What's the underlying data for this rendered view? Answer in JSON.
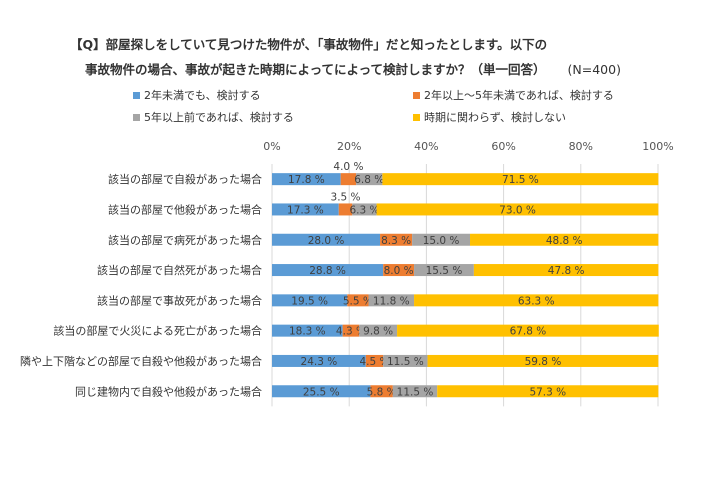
{
  "title": {
    "line1": "【Q】部屋探しをしていて見つけた物件が、「事故物件」だと知ったとします。以下の",
    "line2": "事故物件の場合、事故が起きた時期によってによって検討しますか？（単一回答）",
    "n": "(N=400)"
  },
  "chart_data": {
    "type": "bar",
    "orientation": "horizontal",
    "stacked": true,
    "categories": [
      "該当の部屋で自殺があった場合",
      "該当の部屋で他殺があった場合",
      "該当の部屋で病死があった場合",
      "該当の部屋で自然死があった場合",
      "該当の部屋で事故死があった場合",
      "該当の部屋で火災による死亡があった場合",
      "隣や上下階などの部屋で自殺や他殺があった場合",
      "同じ建物内で自殺や他殺があった場合"
    ],
    "series": [
      {
        "name": "2年未満でも、検討する",
        "color": "#5B9BD5",
        "values": [
          17.8,
          17.3,
          28.0,
          28.8,
          19.5,
          18.3,
          24.3,
          25.5
        ]
      },
      {
        "name": "2年以上～5年未満であれば、検討する",
        "color": "#ED7D31",
        "values": [
          4.0,
          3.5,
          8.3,
          8.0,
          5.5,
          4.3,
          4.5,
          5.8
        ]
      },
      {
        "name": "5年以上前であれば、検討する",
        "color": "#A5A5A5",
        "values": [
          6.8,
          6.3,
          15.0,
          15.5,
          11.8,
          9.8,
          11.5,
          11.5
        ]
      },
      {
        "name": "時期に関わらず、検討しない",
        "color": "#FFC000",
        "values": [
          71.5,
          73.0,
          48.8,
          47.8,
          63.3,
          67.8,
          59.8,
          57.3
        ]
      }
    ],
    "labels": [
      [
        "17.8 %",
        "4.0 %",
        "6.8 %",
        "71.5 %"
      ],
      [
        "17.3 %",
        "3.5 %",
        "6.3 %",
        "73.0 %"
      ],
      [
        "28.0 %",
        "8.3 %",
        "15.0 %",
        "48.8 %"
      ],
      [
        "28.8 %",
        "8.0 %",
        "15.5 %",
        "47.8 %"
      ],
      [
        "19.5 %",
        "5.5 %",
        "11.8 %",
        "63.3 %"
      ],
      [
        "18.3 %",
        "4.3 %",
        "9.8 %",
        "67.8 %"
      ],
      [
        "24.3 %",
        "4.5 %",
        "11.5 %",
        "59.8 %"
      ],
      [
        "25.5 %",
        "5.8 %",
        "11.5 %",
        "57.3 %"
      ]
    ],
    "xticks": [
      "0%",
      "20%",
      "40%",
      "60%",
      "80%",
      "100%"
    ],
    "xlim": [
      0,
      100
    ],
    "legend_position": "top",
    "grid": true
  }
}
